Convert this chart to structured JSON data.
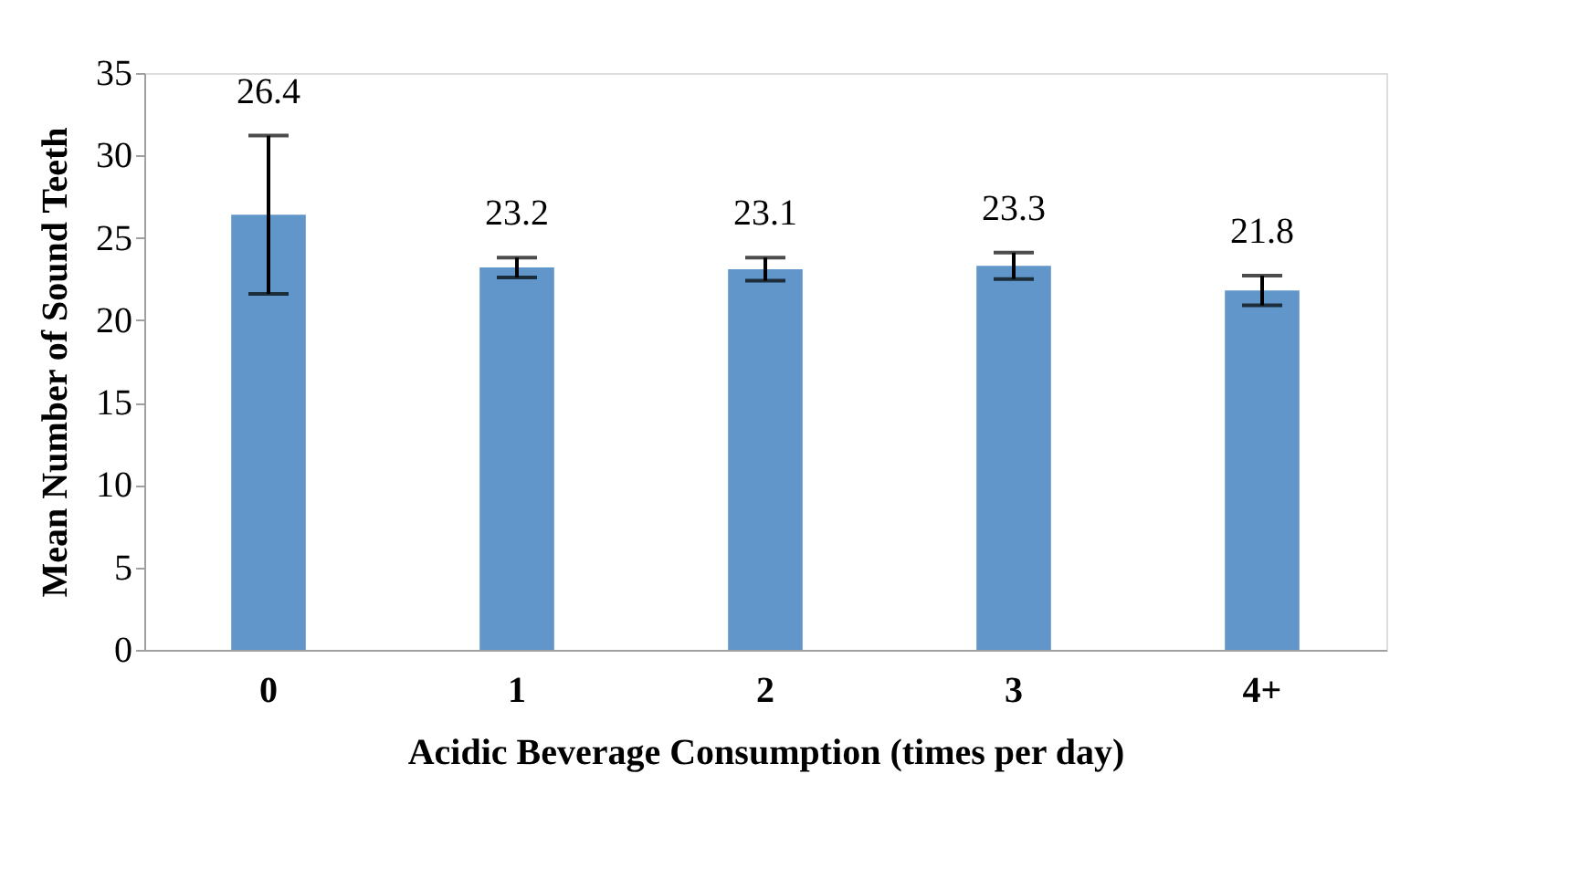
{
  "chart_data": {
    "type": "bar",
    "categories": [
      "0",
      "1",
      "2",
      "3",
      "4+"
    ],
    "values": [
      26.4,
      23.2,
      23.1,
      23.3,
      21.8
    ],
    "errors": [
      4.8,
      0.6,
      0.7,
      0.8,
      0.9
    ],
    "color": "#6096c9",
    "xlabel": "Acidic Beverage Consumption (times per day)",
    "ylabel": "Mean Number of Sound Teeth",
    "ylim": [
      0,
      35
    ],
    "yticks": [
      0,
      5,
      10,
      15,
      20,
      25,
      30,
      35
    ],
    "data_labels": true,
    "grid": false
  }
}
